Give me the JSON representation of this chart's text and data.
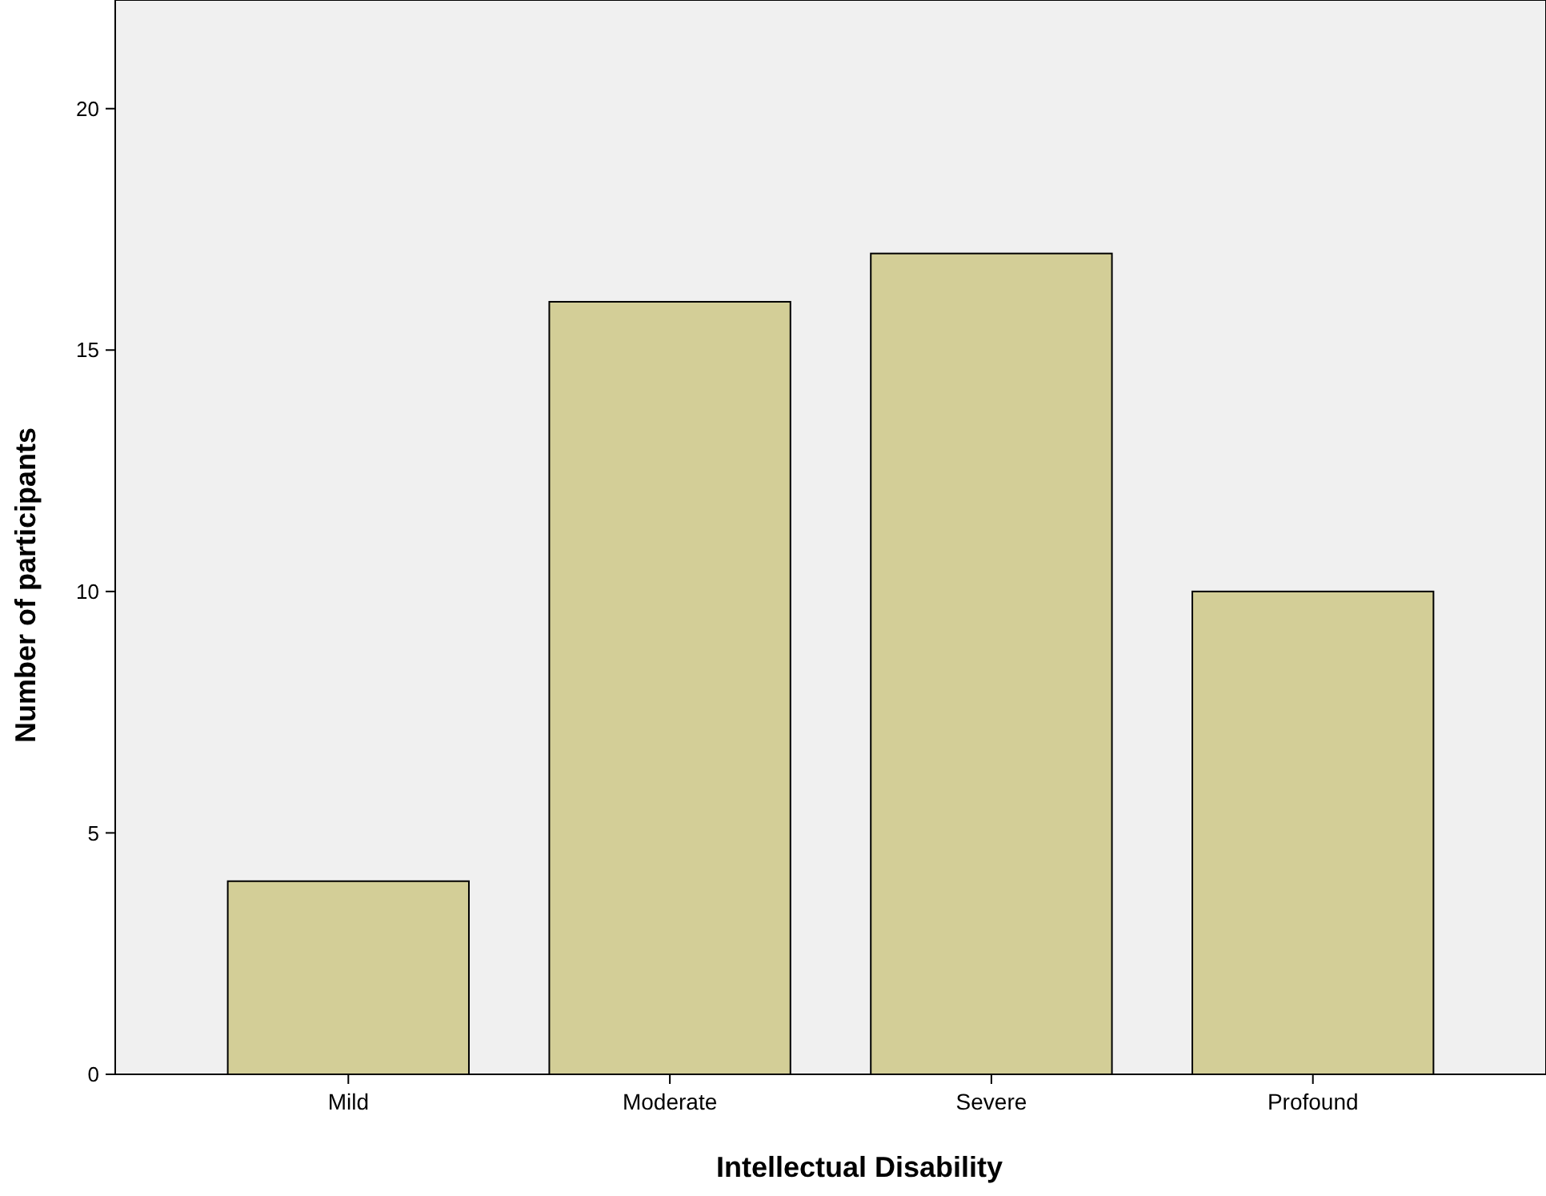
{
  "chart_data": {
    "type": "bar",
    "xlabel": "Intellectual Disability",
    "ylabel": "Number of participants",
    "categories": [
      "Mild",
      "Moderate",
      "Severe",
      "Profound"
    ],
    "values": [
      4,
      16,
      17,
      10
    ],
    "color": "#d3ce97",
    "ylim": [
      0,
      22.25
    ],
    "yticks": [
      0,
      5,
      10,
      15,
      20
    ],
    "grid": false
  }
}
